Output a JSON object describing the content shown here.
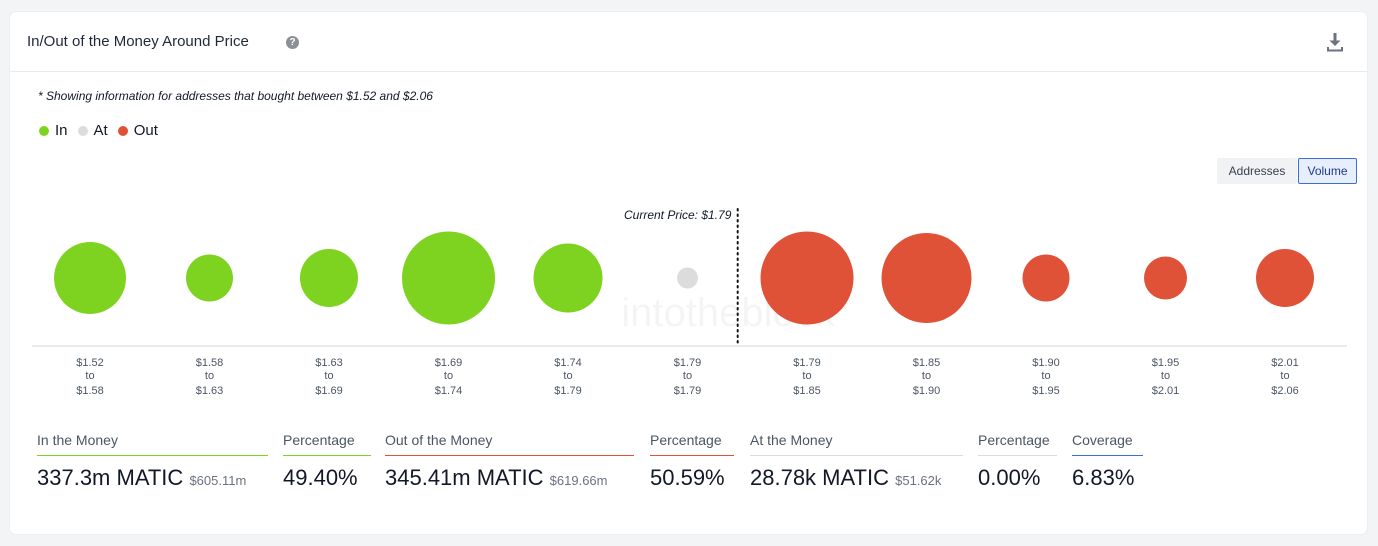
{
  "header": {
    "title": "In/Out of the Money Around Price",
    "help_glyph": "?"
  },
  "note": "* Showing information for addresses that bought between $1.52 and $2.06",
  "legend": [
    {
      "label": "In",
      "color": "#7ed321"
    },
    {
      "label": "At",
      "color": "#dcdcdc"
    },
    {
      "label": "Out",
      "color": "#e05238"
    }
  ],
  "toggles": {
    "addresses": "Addresses",
    "volume": "Volume",
    "active": "volume"
  },
  "watermark": "intotheblock",
  "chart_data": {
    "type": "bubble",
    "title": "In/Out of the Money Around Price",
    "current_price_label": "Current Price: $1.79",
    "bins": [
      {
        "from": "$1.52",
        "to": "$1.58",
        "status": "in",
        "size": 36
      },
      {
        "from": "$1.58",
        "to": "$1.63",
        "status": "in",
        "size": 23.5
      },
      {
        "from": "$1.63",
        "to": "$1.69",
        "status": "in",
        "size": 29
      },
      {
        "from": "$1.69",
        "to": "$1.74",
        "status": "in",
        "size": 46.5
      },
      {
        "from": "$1.74",
        "to": "$1.79",
        "status": "in",
        "size": 34.5
      },
      {
        "from": "$1.79",
        "to": "$1.79",
        "status": "at",
        "size": 10.5
      },
      {
        "from": "$1.79",
        "to": "$1.85",
        "status": "out",
        "size": 46.5
      },
      {
        "from": "$1.85",
        "to": "$1.90",
        "status": "out",
        "size": 45
      },
      {
        "from": "$1.90",
        "to": "$1.95",
        "status": "out",
        "size": 23.5
      },
      {
        "from": "$1.95",
        "to": "$2.01",
        "status": "out",
        "size": 21.5
      },
      {
        "from": "$2.01",
        "to": "$2.06",
        "status": "out",
        "size": 29
      }
    ],
    "current_price_after_index": 5,
    "range_word": "to",
    "colors": {
      "in": "#7ed321",
      "at": "#dcdcdc",
      "out": "#e05238",
      "axis": "#d1d5db",
      "divider": "#111111"
    }
  },
  "stats": {
    "in_the_money": {
      "label": "In the Money",
      "value": "337.3m MATIC",
      "sub": "$605.11m",
      "line_color": "#7ed321"
    },
    "in_pct": {
      "label": "Percentage",
      "value": "49.40%",
      "line_color": "#7ed321"
    },
    "out_the_money": {
      "label": "Out of the Money",
      "value": "345.41m MATIC",
      "sub": "$619.66m",
      "line_color": "#e05238"
    },
    "out_pct": {
      "label": "Percentage",
      "value": "50.59%",
      "line_color": "#e05238"
    },
    "at_the_money": {
      "label": "At the Money",
      "value": "28.78k MATIC",
      "sub": "$51.62k",
      "line_color": "#dcdcdc"
    },
    "at_pct": {
      "label": "Percentage",
      "value": "0.00%",
      "line_color": "#dcdcdc"
    },
    "coverage": {
      "label": "Coverage",
      "value": "6.83%",
      "line_color": "#3b6fd8"
    }
  }
}
